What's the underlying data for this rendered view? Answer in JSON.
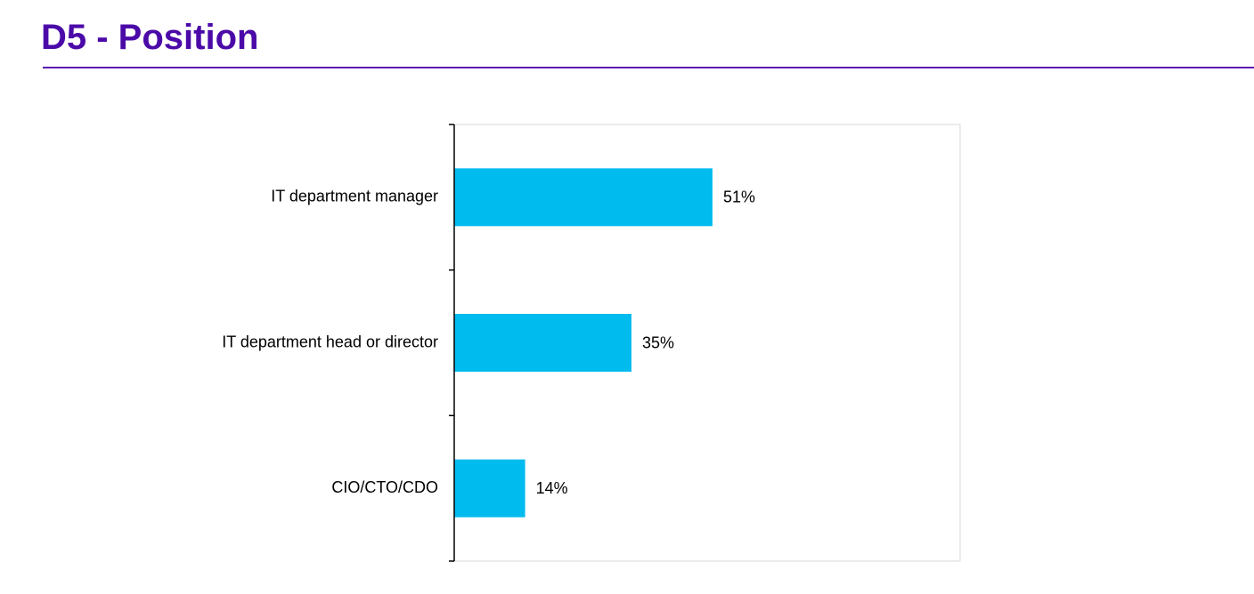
{
  "page": {
    "title": "D5 - Position"
  },
  "colors": {
    "title": "#4b0aa8",
    "rule": "#5a18b0",
    "bar": "#00bbee",
    "axis": "#000000",
    "frame": "#d9d9d9"
  },
  "chart_data": {
    "type": "bar",
    "orientation": "horizontal",
    "categories": [
      "IT department manager",
      "IT department head or director",
      "CIO/CTO/CDO"
    ],
    "values": [
      51,
      35,
      14
    ],
    "value_labels": [
      "51%",
      "35%",
      "14%"
    ],
    "unit": "%",
    "xlim": [
      0,
      100
    ],
    "grid": false,
    "legend": "none"
  }
}
